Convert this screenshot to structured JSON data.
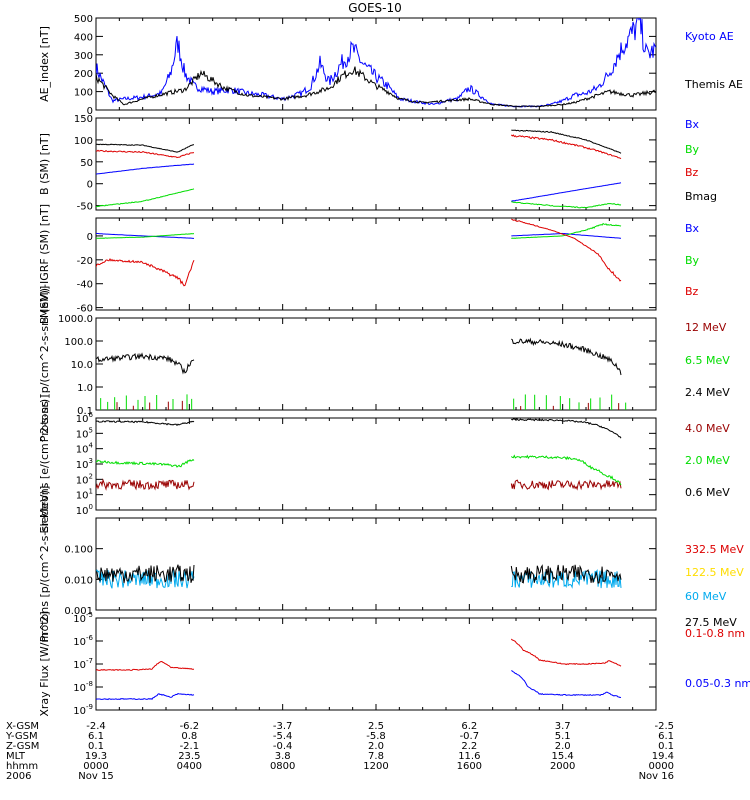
{
  "figure": {
    "title": "GOES-10",
    "ephem_rows": [
      {
        "label": "X-GSM",
        "values": [
          "-2.4",
          "-6.2",
          "-3.7",
          "2.5",
          "6.2",
          "3.7",
          "-2.5"
        ]
      },
      {
        "label": "Y-GSM",
        "values": [
          "6.1",
          "0.8",
          "-5.4",
          "-5.8",
          "-0.7",
          "5.1",
          "6.1"
        ]
      },
      {
        "label": "Z-GSM",
        "values": [
          "0.1",
          "-2.1",
          "-0.4",
          "2.0",
          "2.2",
          "2.0",
          "0.1"
        ]
      },
      {
        "label": "MLT",
        "values": [
          "19.3",
          "23.5",
          "3.8",
          "7.8",
          "11.6",
          "15.4",
          "19.4"
        ]
      },
      {
        "label": "hhmm",
        "values": [
          "0000",
          "0400",
          "0800",
          "1200",
          "1600",
          "2000",
          "0000"
        ]
      },
      {
        "label": "2006",
        "values": [
          "Nov 15",
          "",
          "",
          "",
          "",
          "",
          "Nov 16"
        ]
      }
    ]
  },
  "colors": {
    "black": "#000000",
    "blue": "#0000ff",
    "green": "#00dd00",
    "red": "#dd0000",
    "darkred": "#990000",
    "yellow": "#ffdd00",
    "cyan": "#00aaee"
  },
  "chart_data": [
    {
      "type": "line",
      "ylabel": "AE_index [nT]",
      "yscale": "linear",
      "ylim": [
        0,
        500
      ],
      "yticks": [
        0,
        100,
        200,
        300,
        400,
        500
      ],
      "ytick_labels": [
        "0",
        "100",
        "200",
        "300",
        "400",
        "500"
      ],
      "x_unit": "hours UT from 2006-11-15 00:00",
      "xlim": [
        0,
        24
      ],
      "series": [
        {
          "name": "Kyoto AE",
          "color": "blue",
          "noise": 0.18,
          "x": [
            0,
            0.7,
            1.2,
            2,
            2.8,
            3.2,
            3.5,
            3.8,
            4.2,
            5,
            5.8,
            6.5,
            7.2,
            8,
            8.8,
            9.2,
            9.6,
            10,
            10.5,
            11,
            11.5,
            12,
            12.5,
            13,
            14,
            14.5,
            15,
            15.5,
            16,
            17,
            18,
            19,
            19.5,
            20,
            20.5,
            21,
            21.5,
            22,
            22.3,
            22.6,
            23,
            23.3,
            23.6,
            24
          ],
          "y": [
            230,
            50,
            60,
            70,
            90,
            200,
            370,
            200,
            130,
            100,
            110,
            90,
            80,
            60,
            90,
            130,
            250,
            150,
            250,
            330,
            240,
            180,
            130,
            60,
            40,
            30,
            50,
            60,
            120,
            30,
            20,
            20,
            30,
            50,
            80,
            90,
            120,
            200,
            280,
            350,
            420,
            480,
            300,
            330
          ]
        },
        {
          "name": "Themis AE",
          "color": "black",
          "noise": 0.12,
          "x": [
            0,
            0.7,
            1.2,
            2,
            3,
            3.8,
            4.5,
            5.5,
            6.5,
            8,
            9,
            10,
            10.5,
            11,
            11.5,
            12,
            12.5,
            13,
            14,
            15,
            16,
            17,
            18,
            19,
            20,
            20.5,
            21,
            21.5,
            22,
            22.5,
            23,
            23.5,
            24
          ],
          "y": [
            180,
            80,
            30,
            60,
            90,
            110,
            200,
            120,
            80,
            60,
            80,
            120,
            180,
            220,
            180,
            130,
            100,
            60,
            40,
            50,
            60,
            30,
            20,
            20,
            30,
            40,
            60,
            80,
            100,
            90,
            80,
            90,
            100
          ]
        }
      ]
    },
    {
      "type": "line",
      "ylabel": "B (SM) [nT]",
      "yscale": "linear",
      "ylim": [
        -60,
        150
      ],
      "yticks": [
        -50,
        0,
        50,
        100,
        150
      ],
      "ytick_labels": [
        "-50",
        "0",
        "50",
        "100",
        "150"
      ],
      "x_unit": "hours UT from 2006-11-15 00:00",
      "xlim": [
        0,
        24
      ],
      "series": [
        {
          "name": "Bx",
          "color": "blue",
          "noise": 0.01,
          "segments": [
            {
              "x": [
                0,
                2,
                4.2
              ],
              "y": [
                22,
                35,
                45
              ]
            },
            {
              "x": [
                17.8,
                20,
                22.5
              ],
              "y": [
                -40,
                -20,
                2
              ]
            }
          ]
        },
        {
          "name": "By",
          "color": "green",
          "noise": 0.02,
          "segments": [
            {
              "x": [
                0,
                2,
                4.2
              ],
              "y": [
                -52,
                -40,
                -12
              ]
            },
            {
              "x": [
                17.8,
                19.5,
                21,
                22,
                22.5
              ],
              "y": [
                -42,
                -50,
                -55,
                -45,
                -48
              ]
            }
          ]
        },
        {
          "name": "Bz",
          "color": "red",
          "noise": 0.02,
          "segments": [
            {
              "x": [
                0,
                2,
                3.5,
                4.2
              ],
              "y": [
                75,
                72,
                60,
                72
              ]
            },
            {
              "x": [
                17.8,
                19.5,
                20.8,
                21.5,
                22.5
              ],
              "y": [
                110,
                100,
                85,
                75,
                58
              ]
            }
          ]
        },
        {
          "name": "Bmag",
          "color": "black",
          "noise": 0.01,
          "segments": [
            {
              "x": [
                0,
                2,
                3.5,
                4.2
              ],
              "y": [
                90,
                88,
                72,
                90
              ]
            },
            {
              "x": [
                17.8,
                19.5,
                21,
                22.5
              ],
              "y": [
                122,
                118,
                100,
                70
              ]
            }
          ]
        }
      ]
    },
    {
      "type": "line",
      "ylabel": "B (SM)-IGRF (SM) [nT]",
      "yscale": "linear",
      "ylim": [
        -62,
        15
      ],
      "yticks": [
        -60,
        -40,
        -20,
        0
      ],
      "ytick_labels": [
        "-60",
        "-40",
        "-20",
        "0"
      ],
      "x_unit": "hours UT from 2006-11-15 00:00",
      "xlim": [
        0,
        24
      ],
      "series": [
        {
          "name": "Bx",
          "color": "blue",
          "noise": 0.06,
          "segments": [
            {
              "x": [
                0,
                2,
                4.2
              ],
              "y": [
                2,
                0,
                -2
              ]
            },
            {
              "x": [
                17.8,
                20,
                22.5
              ],
              "y": [
                0,
                2,
                -2
              ]
            }
          ]
        },
        {
          "name": "By",
          "color": "green",
          "noise": 0.08,
          "segments": [
            {
              "x": [
                0,
                2,
                4.2
              ],
              "y": [
                -2,
                -1,
                2
              ]
            },
            {
              "x": [
                17.8,
                20,
                21,
                21.8,
                22.5
              ],
              "y": [
                -2,
                0,
                5,
                10,
                8
              ]
            }
          ]
        },
        {
          "name": "Bz",
          "color": "red",
          "noise": 0.04,
          "segments": [
            {
              "x": [
                0,
                0.5,
                2,
                3.5,
                3.8,
                4.2
              ],
              "y": [
                -25,
                -20,
                -22,
                -35,
                -42,
                -20
              ]
            },
            {
              "x": [
                17.8,
                19.5,
                20.5,
                21.5,
                22,
                22.5
              ],
              "y": [
                14,
                5,
                -2,
                -15,
                -28,
                -38
              ]
            }
          ]
        }
      ]
    },
    {
      "type": "line",
      "ylabel": "Protons [p/(cm^2-s-sr-MeV)]",
      "yscale": "log",
      "ylim": [
        0.1,
        1000
      ],
      "yticks": [
        0.1,
        1,
        10,
        100,
        1000
      ],
      "ytick_labels": [
        "0.1",
        "1.0",
        "10.0",
        "100.0",
        "1000.0"
      ],
      "x_unit": "hours UT from 2006-11-15 00:00",
      "xlim": [
        0,
        24
      ],
      "series": [
        {
          "name": "12 MeV",
          "color": "darkred",
          "noise": 0,
          "spikes": [
            0.9,
            1.6,
            2.3,
            3.1,
            3.7,
            18.2,
            19.6,
            21.1,
            22.4
          ],
          "spike_height": 0.2
        },
        {
          "name": "6.5 MeV",
          "color": "green",
          "noise": 0,
          "spikes": [
            0.2,
            0.5,
            0.8,
            1.3,
            1.8,
            2.1,
            2.6,
            3.3,
            3.9,
            4.1,
            17.9,
            18.4,
            18.8,
            19.3,
            19.9,
            20.3,
            20.7,
            21.2,
            21.6,
            22.1,
            22.7
          ],
          "spike_height": 0.35
        },
        {
          "name": "2.4 MeV",
          "color": "black",
          "noise": 0.12,
          "segments": [
            {
              "x": [
                0,
                1,
                2,
                3,
                3.5,
                3.8,
                4.2
              ],
              "y": [
                15,
                18,
                22,
                18,
                10,
                4,
                15
              ]
            },
            {
              "x": [
                17.8,
                19,
                20,
                21,
                21.5,
                22,
                22.5
              ],
              "y": [
                100,
                90,
                70,
                40,
                25,
                15,
                4
              ]
            }
          ]
        }
      ]
    },
    {
      "type": "line",
      "ylabel": "Electrons [e/(cm^2-s-sr)]",
      "yscale": "log",
      "ylim": [
        1,
        1000000
      ],
      "yticks": [
        1,
        10,
        100,
        1000,
        10000,
        100000,
        1000000
      ],
      "ytick_labels": [
        "10^0",
        "10^1",
        "10^2",
        "10^3",
        "10^4",
        "10^5",
        "10^6"
      ],
      "x_unit": "hours UT from 2006-11-15 00:00",
      "xlim": [
        0,
        24
      ],
      "series": [
        {
          "name": "4.0 MeV",
          "color": "darkred",
          "noise": 0.3,
          "segments": [
            {
              "x": [
                0,
                2,
                4.2
              ],
              "y": [
                45,
                45,
                45
              ]
            },
            {
              "x": [
                17.8,
                20,
                22.5
              ],
              "y": [
                45,
                45,
                45
              ]
            }
          ]
        },
        {
          "name": "2.0 MeV",
          "color": "green",
          "noise": 0.08,
          "segments": [
            {
              "x": [
                0,
                1,
                2,
                3,
                3.6,
                4.2
              ],
              "y": [
                1500,
                1200,
                1100,
                900,
                700,
                2000
              ]
            },
            {
              "x": [
                17.8,
                19.5,
                20.5,
                21.2,
                21.8,
                22.5
              ],
              "y": [
                3000,
                2800,
                2200,
                600,
                200,
                40
              ]
            }
          ]
        },
        {
          "name": "0.6 MeV",
          "color": "black",
          "noise": 0.05,
          "segments": [
            {
              "x": [
                0,
                2,
                3.5,
                4.2
              ],
              "y": [
                600000,
                550000,
                350000,
                600000
              ]
            },
            {
              "x": [
                17.8,
                20,
                21,
                22,
                22.5
              ],
              "y": [
                800000,
                700000,
                500000,
                150000,
                50000
              ]
            }
          ]
        }
      ]
    },
    {
      "type": "line",
      "ylabel": "Protons [p/(cm^2-s-sr-MeV)]",
      "yscale": "log",
      "ylim": [
        0.001,
        1
      ],
      "yticks": [
        0.001,
        0.01,
        0.1
      ],
      "ytick_labels": [
        "0.001",
        "0.010",
        "0.100"
      ],
      "x_unit": "hours UT from 2006-11-15 00:00",
      "xlim": [
        0,
        24
      ],
      "series": [
        {
          "name": "332.5 MeV",
          "color": "red",
          "noise": 0,
          "segments": []
        },
        {
          "name": "122.5 MeV",
          "color": "yellow",
          "noise": 0,
          "segments": []
        },
        {
          "name": "60 MeV",
          "color": "cyan",
          "noise": 0.3,
          "segments": [
            {
              "x": [
                0,
                4.2
              ],
              "y": [
                0.01,
                0.01
              ]
            },
            {
              "x": [
                17.8,
                22.5
              ],
              "y": [
                0.01,
                0.01
              ]
            }
          ]
        },
        {
          "name": "27.5 MeV",
          "color": "black",
          "noise": 0.3,
          "segments": [
            {
              "x": [
                0,
                4.2
              ],
              "y": [
                0.015,
                0.015
              ]
            },
            {
              "x": [
                17.8,
                22.5
              ],
              "y": [
                0.015,
                0.015
              ]
            }
          ]
        }
      ]
    },
    {
      "type": "line",
      "ylabel": "Xray Flux [W/m^2]",
      "yscale": "log",
      "ylim": [
        1e-09,
        1e-05
      ],
      "yticks": [
        1e-09,
        1e-08,
        1e-07,
        1e-06,
        1e-05
      ],
      "ytick_labels": [
        "10^-9",
        "10^-8",
        "10^-7",
        "10^-6",
        "10^-5"
      ],
      "x_unit": "hours UT from 2006-11-15 00:00",
      "xlim": [
        0,
        24
      ],
      "series": [
        {
          "name": "0.1-0.8 nm",
          "color": "red",
          "noise": 0.02,
          "segments": [
            {
              "x": [
                0,
                1.5,
                2.4,
                2.8,
                3.2,
                4.2
              ],
              "y": [
                5.5e-08,
                5.5e-08,
                6e-08,
                1.3e-07,
                7e-08,
                6e-08
              ]
            },
            {
              "x": [
                17.8,
                18.3,
                19,
                20,
                21,
                21.8,
                22,
                22.5
              ],
              "y": [
                1.2e-06,
                4e-07,
                1.5e-07,
                1e-07,
                1e-07,
                1.1e-07,
                1.4e-07,
                8e-08
              ]
            }
          ]
        },
        {
          "name": "0.05-0.3 nm",
          "color": "blue",
          "noise": 0.02,
          "segments": [
            {
              "x": [
                0,
                1.5,
                2.4,
                2.7,
                3.2,
                3.5,
                4.2
              ],
              "y": [
                3e-09,
                3e-09,
                3e-09,
                5e-09,
                3.5e-09,
                5e-09,
                4.5e-09
              ]
            },
            {
              "x": [
                17.8,
                18.5,
                19,
                20,
                21,
                21.7,
                21.9,
                22.1,
                22.5
              ],
              "y": [
                5e-08,
                1e-08,
                5e-09,
                4.5e-09,
                4.5e-09,
                4.5e-09,
                6e-09,
                4.5e-09,
                3.5e-09
              ]
            }
          ]
        }
      ]
    }
  ]
}
